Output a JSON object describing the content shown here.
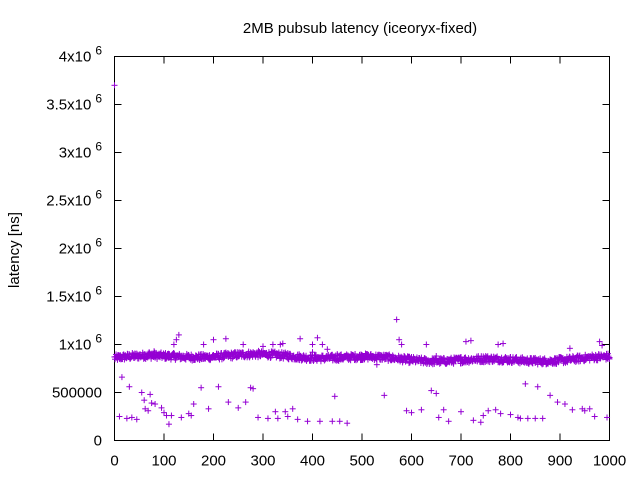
{
  "chart_data": {
    "type": "scatter",
    "title": "2MB pubsub latency (iceoryx-fixed)",
    "xlabel": "",
    "ylabel": "latency [ns]",
    "xlim": [
      0,
      1000
    ],
    "ylim": [
      0,
      4000000
    ],
    "grid": false,
    "legend": "none",
    "marker": "plus",
    "series_color": "#9400d3",
    "x_ticks": [
      {
        "value": 0,
        "label": "0"
      },
      {
        "value": 100,
        "label": "100"
      },
      {
        "value": 200,
        "label": "200"
      },
      {
        "value": 300,
        "label": "300"
      },
      {
        "value": 400,
        "label": "400"
      },
      {
        "value": 500,
        "label": "500"
      },
      {
        "value": 600,
        "label": "600"
      },
      {
        "value": 700,
        "label": "700"
      },
      {
        "value": 800,
        "label": "800"
      },
      {
        "value": 900,
        "label": "900"
      },
      {
        "value": 1000,
        "label": "1000"
      }
    ],
    "y_ticks": [
      {
        "value": 0,
        "base": "0",
        "exp": ""
      },
      {
        "value": 500000,
        "base": "500000",
        "exp": ""
      },
      {
        "value": 1000000,
        "base": "1x10",
        "exp": "6"
      },
      {
        "value": 1500000,
        "base": "1.5x10",
        "exp": "6"
      },
      {
        "value": 2000000,
        "base": "2x10",
        "exp": "6"
      },
      {
        "value": 2500000,
        "base": "2.5x10",
        "exp": "6"
      },
      {
        "value": 3000000,
        "base": "3x10",
        "exp": "6"
      },
      {
        "value": 3500000,
        "base": "3.5x10",
        "exp": "6"
      },
      {
        "value": 4000000,
        "base": "4x10",
        "exp": "6"
      }
    ],
    "points": [
      [
        0,
        3700000
      ],
      [
        0,
        870000
      ],
      [
        5,
        860000
      ],
      [
        10,
        850000
      ],
      [
        20,
        880000
      ],
      [
        30,
        870000
      ],
      [
        40,
        860000
      ],
      [
        50,
        880000
      ],
      [
        60,
        900000
      ],
      [
        70,
        920000
      ],
      [
        80,
        930000
      ],
      [
        90,
        880000
      ],
      [
        100,
        890000
      ],
      [
        110,
        900000
      ],
      [
        120,
        910000
      ],
      [
        150,
        880000
      ],
      [
        200,
        890000
      ],
      [
        250,
        880000
      ],
      [
        300,
        900000
      ],
      [
        350,
        910000
      ],
      [
        400,
        920000
      ],
      [
        450,
        900000
      ],
      [
        500,
        890000
      ],
      [
        550,
        880000
      ],
      [
        600,
        870000
      ],
      [
        650,
        880000
      ],
      [
        700,
        870000
      ],
      [
        750,
        880000
      ],
      [
        800,
        870000
      ],
      [
        850,
        860000
      ],
      [
        900,
        870000
      ],
      [
        950,
        860000
      ],
      [
        1000,
        850000
      ],
      [
        10,
        250000
      ],
      [
        15,
        660000
      ],
      [
        25,
        230000
      ],
      [
        30,
        560000
      ],
      [
        35,
        240000
      ],
      [
        45,
        220000
      ],
      [
        55,
        500000
      ],
      [
        60,
        420000
      ],
      [
        62,
        330000
      ],
      [
        68,
        310000
      ],
      [
        72,
        480000
      ],
      [
        75,
        390000
      ],
      [
        82,
        380000
      ],
      [
        95,
        340000
      ],
      [
        100,
        290000
      ],
      [
        105,
        260000
      ],
      [
        110,
        170000
      ],
      [
        115,
        260000
      ],
      [
        120,
        1000000
      ],
      [
        125,
        1050000
      ],
      [
        130,
        1100000
      ],
      [
        135,
        240000
      ],
      [
        150,
        280000
      ],
      [
        155,
        260000
      ],
      [
        160,
        380000
      ],
      [
        175,
        550000
      ],
      [
        180,
        1000000
      ],
      [
        190,
        330000
      ],
      [
        200,
        1050000
      ],
      [
        210,
        560000
      ],
      [
        225,
        1060000
      ],
      [
        230,
        400000
      ],
      [
        250,
        340000
      ],
      [
        260,
        1000000
      ],
      [
        265,
        400000
      ],
      [
        275,
        550000
      ],
      [
        280,
        540000
      ],
      [
        290,
        240000
      ],
      [
        300,
        980000
      ],
      [
        310,
        230000
      ],
      [
        320,
        1000000
      ],
      [
        325,
        300000
      ],
      [
        330,
        230000
      ],
      [
        335,
        1000000
      ],
      [
        340,
        1010000
      ],
      [
        345,
        300000
      ],
      [
        350,
        250000
      ],
      [
        360,
        330000
      ],
      [
        370,
        220000
      ],
      [
        375,
        1060000
      ],
      [
        390,
        200000
      ],
      [
        400,
        1000000
      ],
      [
        410,
        1070000
      ],
      [
        415,
        200000
      ],
      [
        420,
        1000000
      ],
      [
        430,
        950000
      ],
      [
        440,
        200000
      ],
      [
        445,
        460000
      ],
      [
        455,
        200000
      ],
      [
        470,
        180000
      ],
      [
        530,
        790000
      ],
      [
        545,
        470000
      ],
      [
        570,
        1260000
      ],
      [
        575,
        1050000
      ],
      [
        580,
        1000000
      ],
      [
        590,
        310000
      ],
      [
        600,
        290000
      ],
      [
        620,
        320000
      ],
      [
        630,
        1000000
      ],
      [
        640,
        520000
      ],
      [
        650,
        490000
      ],
      [
        655,
        240000
      ],
      [
        665,
        320000
      ],
      [
        675,
        200000
      ],
      [
        700,
        300000
      ],
      [
        710,
        1030000
      ],
      [
        720,
        1040000
      ],
      [
        725,
        210000
      ],
      [
        740,
        190000
      ],
      [
        745,
        260000
      ],
      [
        755,
        310000
      ],
      [
        770,
        320000
      ],
      [
        775,
        1000000
      ],
      [
        780,
        280000
      ],
      [
        785,
        1010000
      ],
      [
        800,
        270000
      ],
      [
        815,
        240000
      ],
      [
        820,
        230000
      ],
      [
        830,
        590000
      ],
      [
        835,
        230000
      ],
      [
        850,
        230000
      ],
      [
        855,
        560000
      ],
      [
        865,
        230000
      ],
      [
        880,
        470000
      ],
      [
        895,
        400000
      ],
      [
        910,
        380000
      ],
      [
        920,
        960000
      ],
      [
        925,
        320000
      ],
      [
        945,
        330000
      ],
      [
        950,
        310000
      ],
      [
        960,
        330000
      ],
      [
        970,
        250000
      ],
      [
        980,
        1030000
      ],
      [
        985,
        990000
      ],
      [
        995,
        240000
      ]
    ]
  }
}
